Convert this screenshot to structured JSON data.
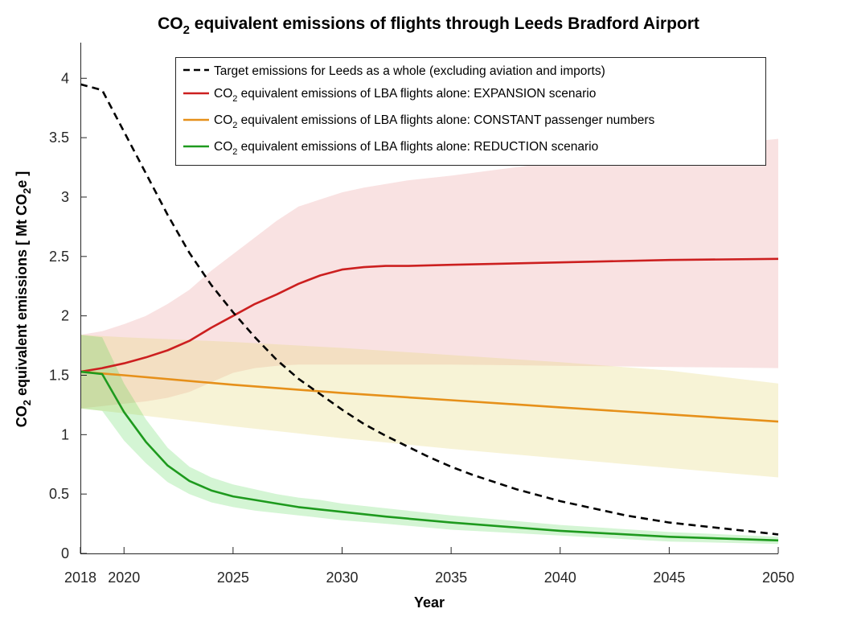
{
  "chart_data": {
    "type": "line",
    "title": "CO2 equivalent emissions of flights through Leeds Bradford Airport",
    "title_parts": {
      "prefix": "CO",
      "sub": "2",
      "rest": " equivalent emissions of flights through Leeds Bradford Airport"
    },
    "xlabel": "Year",
    "ylabel": "CO2 equivalent emissions [ Mt CO2e ]",
    "ylabel_parts": {
      "a": "CO",
      "a_sub": "2",
      "b": " equivalent emissions [ Mt CO",
      "b_sub": "2",
      "c": "e ]"
    },
    "xlim": [
      2018,
      2050
    ],
    "ylim": [
      0,
      4.3
    ],
    "x_ticks": [
      2018,
      2020,
      2025,
      2030,
      2035,
      2040,
      2045,
      2050
    ],
    "y_ticks": [
      0,
      0.5,
      1,
      1.5,
      2,
      2.5,
      3,
      3.5,
      4
    ],
    "y_tick_labels": [
      "0",
      "0.5",
      "1",
      "1.5",
      "2",
      "2.5",
      "3",
      "3.5",
      "4"
    ],
    "legend_position": "top-center",
    "grid": false,
    "series": [
      {
        "id": "target",
        "name": "Target emissions for Leeds as a whole (excluding aviation and imports)",
        "color": "#000000",
        "dash": true,
        "x": [
          2018,
          2019,
          2020,
          2021,
          2022,
          2023,
          2024,
          2025,
          2026,
          2027,
          2028,
          2029,
          2030,
          2031,
          2032,
          2033,
          2034,
          2035,
          2036,
          2037,
          2038,
          2039,
          2040,
          2041,
          2042,
          2043,
          2044,
          2045,
          2046,
          2047,
          2048,
          2049,
          2050
        ],
        "values": [
          3.95,
          3.9,
          3.55,
          3.2,
          2.85,
          2.53,
          2.26,
          2.03,
          1.82,
          1.63,
          1.47,
          1.34,
          1.21,
          1.09,
          0.99,
          0.9,
          0.81,
          0.73,
          0.66,
          0.6,
          0.54,
          0.49,
          0.44,
          0.4,
          0.36,
          0.32,
          0.29,
          0.26,
          0.24,
          0.22,
          0.2,
          0.18,
          0.16
        ]
      },
      {
        "id": "expansion",
        "name_parts": {
          "a": "CO",
          "sub": "2",
          "b": " equivalent emissions of LBA flights alone: EXPANSION scenario"
        },
        "color": "#cc1f1f",
        "fill": "rgba(232, 150, 150, 0.28)",
        "x": [
          2018,
          2019,
          2020,
          2021,
          2022,
          2023,
          2024,
          2025,
          2026,
          2027,
          2028,
          2029,
          2030,
          2031,
          2032,
          2033,
          2035,
          2040,
          2045,
          2050
        ],
        "values": [
          1.53,
          1.56,
          1.6,
          1.65,
          1.71,
          1.79,
          1.9,
          2.0,
          2.1,
          2.18,
          2.27,
          2.34,
          2.39,
          2.41,
          2.42,
          2.42,
          2.43,
          2.45,
          2.47,
          2.48
        ],
        "band_upper": [
          1.84,
          1.87,
          1.93,
          2.0,
          2.1,
          2.22,
          2.38,
          2.52,
          2.66,
          2.8,
          2.92,
          2.98,
          3.04,
          3.08,
          3.11,
          3.14,
          3.18,
          3.3,
          3.4,
          3.49
        ],
        "band_lower": [
          1.22,
          1.24,
          1.26,
          1.28,
          1.31,
          1.36,
          1.44,
          1.52,
          1.56,
          1.58,
          1.59,
          1.59,
          1.59,
          1.59,
          1.59,
          1.59,
          1.59,
          1.58,
          1.57,
          1.56
        ]
      },
      {
        "id": "constant",
        "name_parts": {
          "a": "CO",
          "sub": "2",
          "b": " equivalent emissions of LBA flights alone: CONSTANT passenger numbers"
        },
        "color": "#e6901a",
        "fill": "rgba(230, 215, 120, 0.3)",
        "x": [
          2018,
          2020,
          2025,
          2030,
          2035,
          2040,
          2045,
          2050
        ],
        "values": [
          1.53,
          1.5,
          1.42,
          1.35,
          1.29,
          1.23,
          1.17,
          1.11
        ],
        "band_upper": [
          1.84,
          1.82,
          1.78,
          1.73,
          1.67,
          1.61,
          1.54,
          1.43
        ],
        "band_lower": [
          1.22,
          1.18,
          1.07,
          0.97,
          0.88,
          0.8,
          0.72,
          0.64
        ]
      },
      {
        "id": "reduction",
        "name_parts": {
          "a": "CO",
          "sub": "2",
          "b": " equivalent emissions of LBA flights alone: REDUCTION scenario"
        },
        "color": "#1e9a1e",
        "fill": "rgba(60, 210, 60, 0.22)",
        "x": [
          2018,
          2019,
          2020,
          2021,
          2022,
          2023,
          2024,
          2025,
          2026,
          2027,
          2028,
          2029,
          2030,
          2032,
          2035,
          2040,
          2045,
          2050
        ],
        "values": [
          1.53,
          1.51,
          1.19,
          0.94,
          0.74,
          0.61,
          0.53,
          0.48,
          0.45,
          0.42,
          0.39,
          0.37,
          0.35,
          0.31,
          0.26,
          0.19,
          0.14,
          0.11
        ],
        "band_upper": [
          1.84,
          1.82,
          1.43,
          1.13,
          0.89,
          0.73,
          0.64,
          0.58,
          0.54,
          0.5,
          0.47,
          0.45,
          0.42,
          0.38,
          0.32,
          0.24,
          0.18,
          0.14
        ],
        "band_lower": [
          1.22,
          1.2,
          0.95,
          0.76,
          0.6,
          0.5,
          0.43,
          0.39,
          0.36,
          0.34,
          0.32,
          0.3,
          0.28,
          0.25,
          0.2,
          0.15,
          0.1,
          0.08
        ]
      }
    ]
  }
}
